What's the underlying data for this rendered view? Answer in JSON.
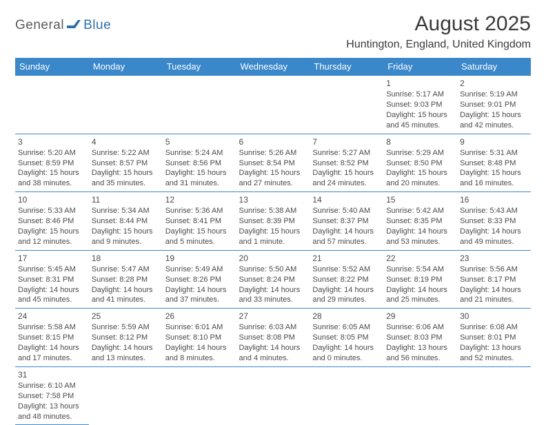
{
  "logo": {
    "part1": "General",
    "part2": "Blue"
  },
  "title": "August 2025",
  "location": "Huntington, England, United Kingdom",
  "colors": {
    "header_bg": "#3a87c9",
    "header_text": "#ffffff",
    "border": "#3a87c9",
    "logo_gray": "#5a5a5a",
    "logo_blue": "#2f6fb0",
    "body_text": "#4a4a4a",
    "page_bg": "#ffffff"
  },
  "day_headers": [
    "Sunday",
    "Monday",
    "Tuesday",
    "Wednesday",
    "Thursday",
    "Friday",
    "Saturday"
  ],
  "weeks": [
    [
      null,
      null,
      null,
      null,
      null,
      {
        "n": "1",
        "sunrise": "Sunrise: 5:17 AM",
        "sunset": "Sunset: 9:03 PM",
        "d1": "Daylight: 15 hours",
        "d2": "and 45 minutes."
      },
      {
        "n": "2",
        "sunrise": "Sunrise: 5:19 AM",
        "sunset": "Sunset: 9:01 PM",
        "d1": "Daylight: 15 hours",
        "d2": "and 42 minutes."
      }
    ],
    [
      {
        "n": "3",
        "sunrise": "Sunrise: 5:20 AM",
        "sunset": "Sunset: 8:59 PM",
        "d1": "Daylight: 15 hours",
        "d2": "and 38 minutes."
      },
      {
        "n": "4",
        "sunrise": "Sunrise: 5:22 AM",
        "sunset": "Sunset: 8:57 PM",
        "d1": "Daylight: 15 hours",
        "d2": "and 35 minutes."
      },
      {
        "n": "5",
        "sunrise": "Sunrise: 5:24 AM",
        "sunset": "Sunset: 8:56 PM",
        "d1": "Daylight: 15 hours",
        "d2": "and 31 minutes."
      },
      {
        "n": "6",
        "sunrise": "Sunrise: 5:26 AM",
        "sunset": "Sunset: 8:54 PM",
        "d1": "Daylight: 15 hours",
        "d2": "and 27 minutes."
      },
      {
        "n": "7",
        "sunrise": "Sunrise: 5:27 AM",
        "sunset": "Sunset: 8:52 PM",
        "d1": "Daylight: 15 hours",
        "d2": "and 24 minutes."
      },
      {
        "n": "8",
        "sunrise": "Sunrise: 5:29 AM",
        "sunset": "Sunset: 8:50 PM",
        "d1": "Daylight: 15 hours",
        "d2": "and 20 minutes."
      },
      {
        "n": "9",
        "sunrise": "Sunrise: 5:31 AM",
        "sunset": "Sunset: 8:48 PM",
        "d1": "Daylight: 15 hours",
        "d2": "and 16 minutes."
      }
    ],
    [
      {
        "n": "10",
        "sunrise": "Sunrise: 5:33 AM",
        "sunset": "Sunset: 8:46 PM",
        "d1": "Daylight: 15 hours",
        "d2": "and 12 minutes."
      },
      {
        "n": "11",
        "sunrise": "Sunrise: 5:34 AM",
        "sunset": "Sunset: 8:44 PM",
        "d1": "Daylight: 15 hours",
        "d2": "and 9 minutes."
      },
      {
        "n": "12",
        "sunrise": "Sunrise: 5:36 AM",
        "sunset": "Sunset: 8:41 PM",
        "d1": "Daylight: 15 hours",
        "d2": "and 5 minutes."
      },
      {
        "n": "13",
        "sunrise": "Sunrise: 5:38 AM",
        "sunset": "Sunset: 8:39 PM",
        "d1": "Daylight: 15 hours",
        "d2": "and 1 minute."
      },
      {
        "n": "14",
        "sunrise": "Sunrise: 5:40 AM",
        "sunset": "Sunset: 8:37 PM",
        "d1": "Daylight: 14 hours",
        "d2": "and 57 minutes."
      },
      {
        "n": "15",
        "sunrise": "Sunrise: 5:42 AM",
        "sunset": "Sunset: 8:35 PM",
        "d1": "Daylight: 14 hours",
        "d2": "and 53 minutes."
      },
      {
        "n": "16",
        "sunrise": "Sunrise: 5:43 AM",
        "sunset": "Sunset: 8:33 PM",
        "d1": "Daylight: 14 hours",
        "d2": "and 49 minutes."
      }
    ],
    [
      {
        "n": "17",
        "sunrise": "Sunrise: 5:45 AM",
        "sunset": "Sunset: 8:31 PM",
        "d1": "Daylight: 14 hours",
        "d2": "and 45 minutes."
      },
      {
        "n": "18",
        "sunrise": "Sunrise: 5:47 AM",
        "sunset": "Sunset: 8:28 PM",
        "d1": "Daylight: 14 hours",
        "d2": "and 41 minutes."
      },
      {
        "n": "19",
        "sunrise": "Sunrise: 5:49 AM",
        "sunset": "Sunset: 8:26 PM",
        "d1": "Daylight: 14 hours",
        "d2": "and 37 minutes."
      },
      {
        "n": "20",
        "sunrise": "Sunrise: 5:50 AM",
        "sunset": "Sunset: 8:24 PM",
        "d1": "Daylight: 14 hours",
        "d2": "and 33 minutes."
      },
      {
        "n": "21",
        "sunrise": "Sunrise: 5:52 AM",
        "sunset": "Sunset: 8:22 PM",
        "d1": "Daylight: 14 hours",
        "d2": "and 29 minutes."
      },
      {
        "n": "22",
        "sunrise": "Sunrise: 5:54 AM",
        "sunset": "Sunset: 8:19 PM",
        "d1": "Daylight: 14 hours",
        "d2": "and 25 minutes."
      },
      {
        "n": "23",
        "sunrise": "Sunrise: 5:56 AM",
        "sunset": "Sunset: 8:17 PM",
        "d1": "Daylight: 14 hours",
        "d2": "and 21 minutes."
      }
    ],
    [
      {
        "n": "24",
        "sunrise": "Sunrise: 5:58 AM",
        "sunset": "Sunset: 8:15 PM",
        "d1": "Daylight: 14 hours",
        "d2": "and 17 minutes."
      },
      {
        "n": "25",
        "sunrise": "Sunrise: 5:59 AM",
        "sunset": "Sunset: 8:12 PM",
        "d1": "Daylight: 14 hours",
        "d2": "and 13 minutes."
      },
      {
        "n": "26",
        "sunrise": "Sunrise: 6:01 AM",
        "sunset": "Sunset: 8:10 PM",
        "d1": "Daylight: 14 hours",
        "d2": "and 8 minutes."
      },
      {
        "n": "27",
        "sunrise": "Sunrise: 6:03 AM",
        "sunset": "Sunset: 8:08 PM",
        "d1": "Daylight: 14 hours",
        "d2": "and 4 minutes."
      },
      {
        "n": "28",
        "sunrise": "Sunrise: 6:05 AM",
        "sunset": "Sunset: 8:05 PM",
        "d1": "Daylight: 14 hours",
        "d2": "and 0 minutes."
      },
      {
        "n": "29",
        "sunrise": "Sunrise: 6:06 AM",
        "sunset": "Sunset: 8:03 PM",
        "d1": "Daylight: 13 hours",
        "d2": "and 56 minutes."
      },
      {
        "n": "30",
        "sunrise": "Sunrise: 6:08 AM",
        "sunset": "Sunset: 8:01 PM",
        "d1": "Daylight: 13 hours",
        "d2": "and 52 minutes."
      }
    ],
    [
      {
        "n": "31",
        "sunrise": "Sunrise: 6:10 AM",
        "sunset": "Sunset: 7:58 PM",
        "d1": "Daylight: 13 hours",
        "d2": "and 48 minutes."
      },
      null,
      null,
      null,
      null,
      null,
      null
    ]
  ]
}
